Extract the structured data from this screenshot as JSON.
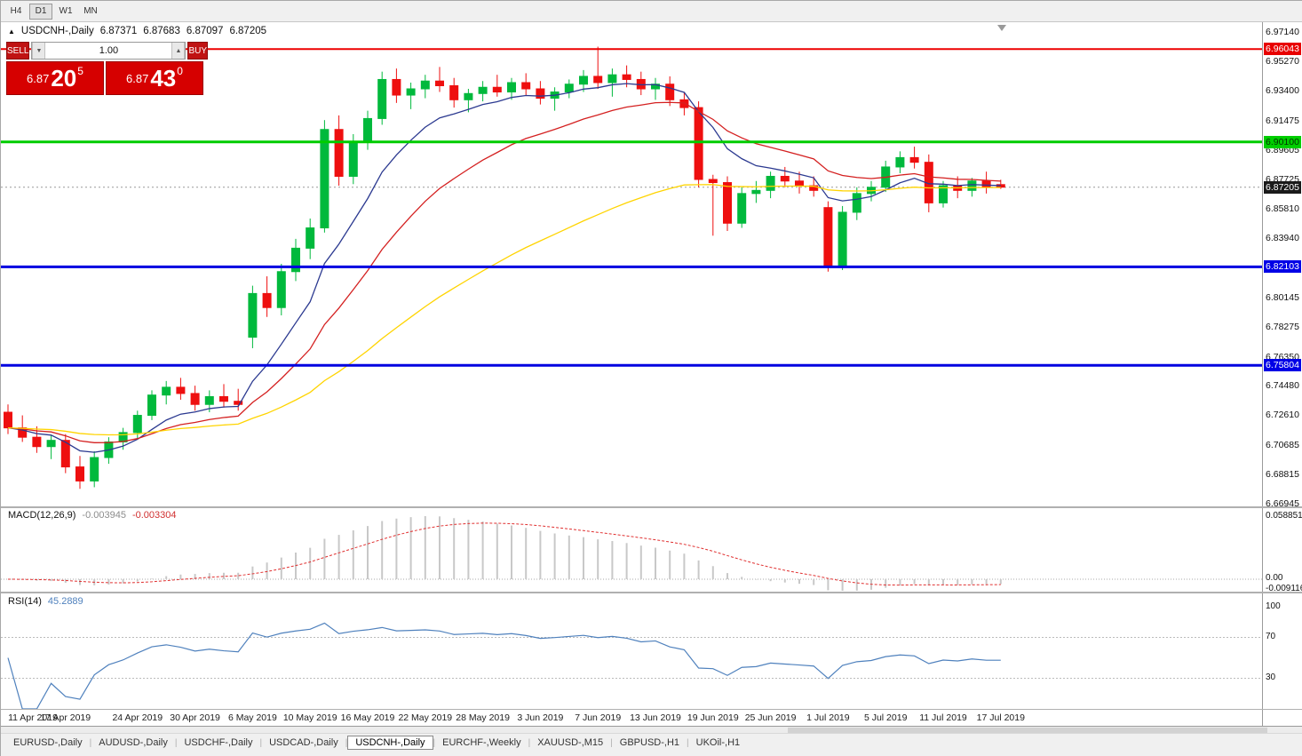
{
  "toolbar": {
    "periods": [
      "H4",
      "D1",
      "W1",
      "MN"
    ],
    "active": "D1"
  },
  "chart_header": {
    "marker": "▲",
    "symbol": "USDCNH-,Daily",
    "open": "6.87371",
    "high": "6.87683",
    "low": "6.87097",
    "close": "6.87205"
  },
  "trade_panel": {
    "sell_label": "SELL",
    "buy_label": "BUY",
    "volume": "1.00",
    "volume_down_glyph": "▼",
    "volume_up_glyph": "▲",
    "sell_price": {
      "base": "6.87",
      "pips": "20",
      "pt": "5"
    },
    "buy_price": {
      "base": "6.87",
      "pips": "43",
      "pt": "0"
    }
  },
  "price_axis": {
    "labels": [
      "6.97140",
      "6.95270",
      "6.93400",
      "6.91475",
      "6.89605",
      "6.87725",
      "6.85810",
      "6.83940",
      "6.80145",
      "6.78275",
      "6.76350",
      "6.74480",
      "6.72610",
      "6.70685",
      "6.68815",
      "6.66945"
    ],
    "tags": [
      {
        "text": "6.96043",
        "price": 6.96043,
        "bg": "#e80000",
        "fg": "#ffffff"
      },
      {
        "text": "6.90100",
        "price": 6.901,
        "bg": "#00ce00",
        "fg": "#003300"
      },
      {
        "text": "6.87205",
        "price": 6.87205,
        "bg": "#1a1a1a",
        "fg": "#ffffff"
      },
      {
        "text": "6.82103",
        "price": 6.82103,
        "bg": "#0000e6",
        "fg": "#ffffff"
      },
      {
        "text": "6.75804",
        "price": 6.75804,
        "bg": "#0000e6",
        "fg": "#ffffff"
      }
    ]
  },
  "chart_data": {
    "type": "candlestick",
    "symbol": "USDCNH",
    "timeframe": "Daily",
    "price_range": {
      "top": 6.9714,
      "bottom": 6.66945
    },
    "bid_line": {
      "price": 6.87205,
      "color": "#999999"
    },
    "hlines": [
      {
        "price": 6.96043,
        "color": "#ee0000",
        "width": 2
      },
      {
        "price": 6.901,
        "color": "#00cc00",
        "width": 3
      },
      {
        "price": 6.82103,
        "color": "#0000e0",
        "width": 3
      },
      {
        "price": 6.75804,
        "color": "#0000e0",
        "width": 3
      }
    ],
    "moving_averages": [
      {
        "period": 8,
        "color": "#2b3990"
      },
      {
        "period": 17,
        "color": "#d42020"
      },
      {
        "period": 44,
        "color": "#ffd400"
      }
    ],
    "colors": {
      "up": "#00b93c",
      "down": "#ee0f0f"
    },
    "candles": [
      [
        6.728,
        6.733,
        6.714,
        6.718
      ],
      [
        6.718,
        6.726,
        6.709,
        6.712
      ],
      [
        6.712,
        6.719,
        6.702,
        6.706
      ],
      [
        6.706,
        6.713,
        6.698,
        6.71
      ],
      [
        6.71,
        6.714,
        6.689,
        6.693
      ],
      [
        6.693,
        6.7,
        6.679,
        6.684
      ],
      [
        6.684,
        6.703,
        6.68,
        6.699
      ],
      [
        6.699,
        6.712,
        6.695,
        6.709
      ],
      [
        6.709,
        6.718,
        6.704,
        6.715
      ],
      [
        6.715,
        6.729,
        6.711,
        6.726
      ],
      [
        6.726,
        6.742,
        6.723,
        6.739
      ],
      [
        6.739,
        6.748,
        6.733,
        6.744
      ],
      [
        6.744,
        6.75,
        6.736,
        6.74
      ],
      [
        6.74,
        6.745,
        6.729,
        6.733
      ],
      [
        6.733,
        6.742,
        6.728,
        6.738
      ],
      [
        6.738,
        6.746,
        6.731,
        6.735
      ],
      [
        6.735,
        6.743,
        6.729,
        6.733
      ],
      [
        6.776,
        6.809,
        6.769,
        6.804
      ],
      [
        6.804,
        6.815,
        6.789,
        6.795
      ],
      [
        6.795,
        6.823,
        6.79,
        6.818
      ],
      [
        6.818,
        6.839,
        6.812,
        6.833
      ],
      [
        6.833,
        6.852,
        6.826,
        6.846
      ],
      [
        6.846,
        6.915,
        6.843,
        6.909
      ],
      [
        6.909,
        6.918,
        6.873,
        6.879
      ],
      [
        6.879,
        6.906,
        6.874,
        6.901
      ],
      [
        6.901,
        6.921,
        6.896,
        6.916
      ],
      [
        6.916,
        6.946,
        6.912,
        6.941
      ],
      [
        6.941,
        6.948,
        6.926,
        6.931
      ],
      [
        6.931,
        6.939,
        6.922,
        6.935
      ],
      [
        6.935,
        6.944,
        6.929,
        6.94
      ],
      [
        6.94,
        6.949,
        6.933,
        6.937
      ],
      [
        6.937,
        6.942,
        6.923,
        6.928
      ],
      [
        6.928,
        6.935,
        6.92,
        6.932
      ],
      [
        6.932,
        6.94,
        6.927,
        6.936
      ],
      [
        6.936,
        6.944,
        6.93,
        6.933
      ],
      [
        6.933,
        6.942,
        6.928,
        6.939
      ],
      [
        6.939,
        6.945,
        6.931,
        6.935
      ],
      [
        6.935,
        6.94,
        6.925,
        6.929
      ],
      [
        6.929,
        6.936,
        6.921,
        6.933
      ],
      [
        6.933,
        6.941,
        6.929,
        6.938
      ],
      [
        6.938,
        6.947,
        6.933,
        6.943
      ],
      [
        6.943,
        6.962,
        6.935,
        6.939
      ],
      [
        6.939,
        6.948,
        6.93,
        6.944
      ],
      [
        6.944,
        6.95,
        6.936,
        6.941
      ],
      [
        6.941,
        6.946,
        6.931,
        6.935
      ],
      [
        6.935,
        6.942,
        6.928,
        6.938
      ],
      [
        6.938,
        6.943,
        6.924,
        6.928
      ],
      [
        6.928,
        6.933,
        6.918,
        6.923
      ],
      [
        6.923,
        6.927,
        6.872,
        6.877
      ],
      [
        6.877,
        6.88,
        6.841,
        6.875
      ],
      [
        6.875,
        6.879,
        6.844,
        6.849
      ],
      [
        6.849,
        6.872,
        6.846,
        6.868
      ],
      [
        6.868,
        6.876,
        6.862,
        6.87
      ],
      [
        6.87,
        6.882,
        6.865,
        6.879
      ],
      [
        6.879,
        6.885,
        6.872,
        6.876
      ],
      [
        6.876,
        6.882,
        6.868,
        6.873
      ],
      [
        6.873,
        6.879,
        6.866,
        6.87
      ],
      [
        6.859,
        6.863,
        6.818,
        6.821
      ],
      [
        6.821,
        6.86,
        6.819,
        6.856
      ],
      [
        6.856,
        6.872,
        6.851,
        6.868
      ],
      [
        6.868,
        6.876,
        6.863,
        6.872
      ],
      [
        6.872,
        6.889,
        6.869,
        6.885
      ],
      [
        6.885,
        6.895,
        6.881,
        6.891
      ],
      [
        6.891,
        6.898,
        6.884,
        6.888
      ],
      [
        6.888,
        6.893,
        6.856,
        6.862
      ],
      [
        6.862,
        6.876,
        6.859,
        6.873
      ],
      [
        6.873,
        6.879,
        6.865,
        6.87
      ],
      [
        6.87,
        6.878,
        6.866,
        6.876
      ],
      [
        6.876,
        6.882,
        6.868,
        6.872
      ],
      [
        6.87371,
        6.87683,
        6.87097,
        6.87205
      ]
    ],
    "date_ticks": [
      {
        "index": 0,
        "label": "11 Apr 2019"
      },
      {
        "index": 4,
        "label": "17 Apr 2019"
      },
      {
        "index": 9,
        "label": "24 Apr 2019"
      },
      {
        "index": 13,
        "label": "30 Apr 2019"
      },
      {
        "index": 17,
        "label": "6 May 2019"
      },
      {
        "index": 21,
        "label": "10 May 2019"
      },
      {
        "index": 25,
        "label": "16 May 2019"
      },
      {
        "index": 29,
        "label": "22 May 2019"
      },
      {
        "index": 33,
        "label": "28 May 2019"
      },
      {
        "index": 37,
        "label": "3 Jun 2019"
      },
      {
        "index": 41,
        "label": "7 Jun 2019"
      },
      {
        "index": 45,
        "label": "13 Jun 2019"
      },
      {
        "index": 49,
        "label": "19 Jun 2019"
      },
      {
        "index": 53,
        "label": "25 Jun 2019"
      },
      {
        "index": 57,
        "label": "1 Jul 2019"
      },
      {
        "index": 61,
        "label": "5 Jul 2019"
      },
      {
        "index": 65,
        "label": "11 Jul 2019"
      },
      {
        "index": 69,
        "label": "17 Jul 2019"
      }
    ]
  },
  "macd": {
    "label": "MACD(12,26,9)",
    "main_value": "-0.003945",
    "signal_value": "-0.003304",
    "params": {
      "fast": 12,
      "slow": 26,
      "signal": 9
    },
    "scale": {
      "max": "0.058851",
      "zero": "0.00",
      "min": "-0.009116"
    },
    "colors": {
      "histogram": "#c8c8c8",
      "signal": "#e03030"
    }
  },
  "rsi": {
    "label": "RSI(14)",
    "value": "45.2889",
    "period": 14,
    "scale": [
      "100",
      "70",
      "30"
    ],
    "levels": [
      70,
      30
    ],
    "color": "#4f81bd"
  },
  "tabs": [
    {
      "label": "EURUSD-,Daily",
      "active": false
    },
    {
      "label": "AUDUSD-,Daily",
      "active": false
    },
    {
      "label": "USDCHF-,Daily",
      "active": false
    },
    {
      "label": "USDCAD-,Daily",
      "active": false
    },
    {
      "label": "USDCNH-,Daily",
      "active": true
    },
    {
      "label": "EURCHF-,Weekly",
      "active": false
    },
    {
      "label": "XAUUSD-,M15",
      "active": false
    },
    {
      "label": "GBPUSD-,H1",
      "active": false
    },
    {
      "label": "UKOil-,H1",
      "active": false
    }
  ]
}
